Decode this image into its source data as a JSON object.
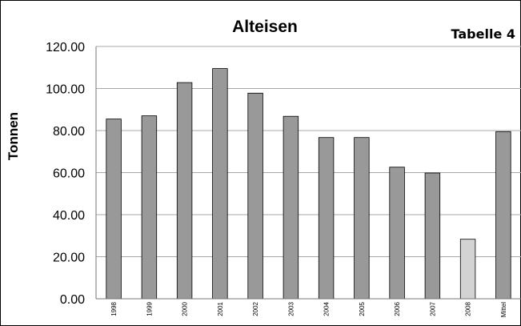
{
  "table_label": "Tabelle 4",
  "colors": {
    "bar": "#999999",
    "bar_highlight": "#d3d3d3",
    "bar_stroke": "#000000",
    "grid": "#a8a8a8",
    "axis": "#777777"
  },
  "chart_data": {
    "type": "bar",
    "title": "Alteisen",
    "xlabel": "",
    "ylabel": "Tonnen",
    "categories": [
      "1998",
      "1999",
      "2000",
      "2001",
      "2002",
      "2003",
      "2004",
      "2005",
      "2006",
      "2007",
      "2008",
      "Mittel"
    ],
    "values": [
      85.5,
      87.0,
      102.8,
      109.5,
      97.8,
      86.8,
      76.7,
      76.7,
      62.6,
      59.8,
      28.3,
      79.5
    ],
    "highlight_categories": [
      "2008"
    ],
    "yticks": [
      "0.00",
      "20.00",
      "40.00",
      "60.00",
      "80.00",
      "100.00",
      "120.00"
    ],
    "ylim": [
      0,
      120
    ],
    "grid": true,
    "legend": "none"
  }
}
